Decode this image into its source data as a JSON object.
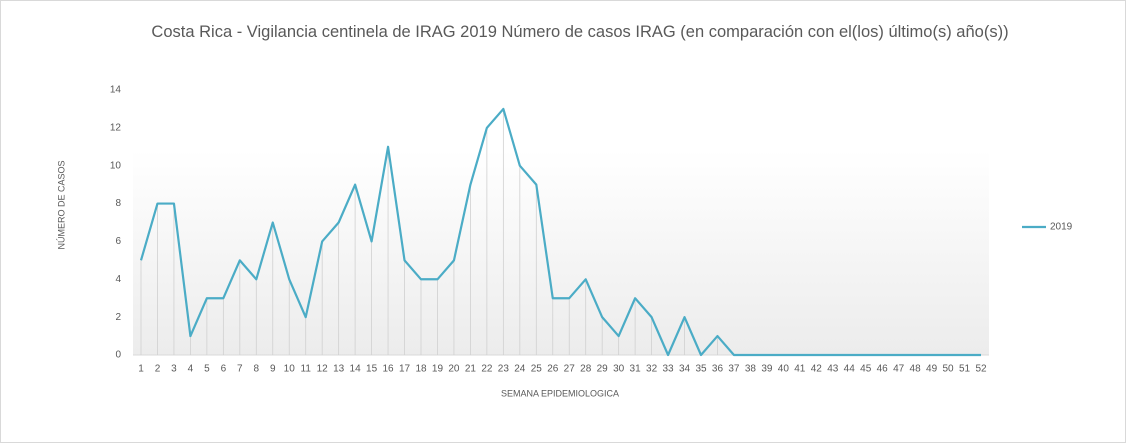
{
  "chart_data": {
    "type": "line",
    "title": "Costa Rica - Vigilancia centinela de IRAG  2019 Número de casos IRAG (en comparación con el(los) último(s) año(s))",
    "x_label": "SEMANA EPIDEMIOLOGICA",
    "y_label": "NÚMERO DE CASOS",
    "categories": [
      "1",
      "2",
      "3",
      "4",
      "5",
      "6",
      "7",
      "8",
      "9",
      "10",
      "11",
      "12",
      "13",
      "14",
      "15",
      "16",
      "17",
      "18",
      "19",
      "20",
      "21",
      "22",
      "23",
      "24",
      "25",
      "26",
      "27",
      "28",
      "29",
      "30",
      "31",
      "32",
      "33",
      "34",
      "35",
      "36",
      "37",
      "38",
      "39",
      "40",
      "41",
      "42",
      "43",
      "44",
      "45",
      "46",
      "47",
      "48",
      "49",
      "50",
      "51",
      "52"
    ],
    "series": [
      {
        "name": "2019",
        "color": "#4bacc6",
        "values": [
          5,
          8,
          8,
          1,
          3,
          3,
          5,
          4,
          7,
          4,
          2,
          6,
          7,
          9,
          6,
          11,
          5,
          4,
          4,
          5,
          9,
          12,
          13,
          10,
          9,
          3,
          3,
          4,
          2,
          1,
          3,
          2,
          0,
          2,
          0,
          1,
          0,
          0,
          0,
          0,
          0,
          0,
          0,
          0,
          0,
          0,
          0,
          0,
          0,
          0,
          0,
          0
        ]
      }
    ],
    "ylim": [
      0,
      14
    ],
    "yticks": [
      0,
      2,
      4,
      6,
      8,
      10,
      12,
      14
    ],
    "legend": "right"
  }
}
